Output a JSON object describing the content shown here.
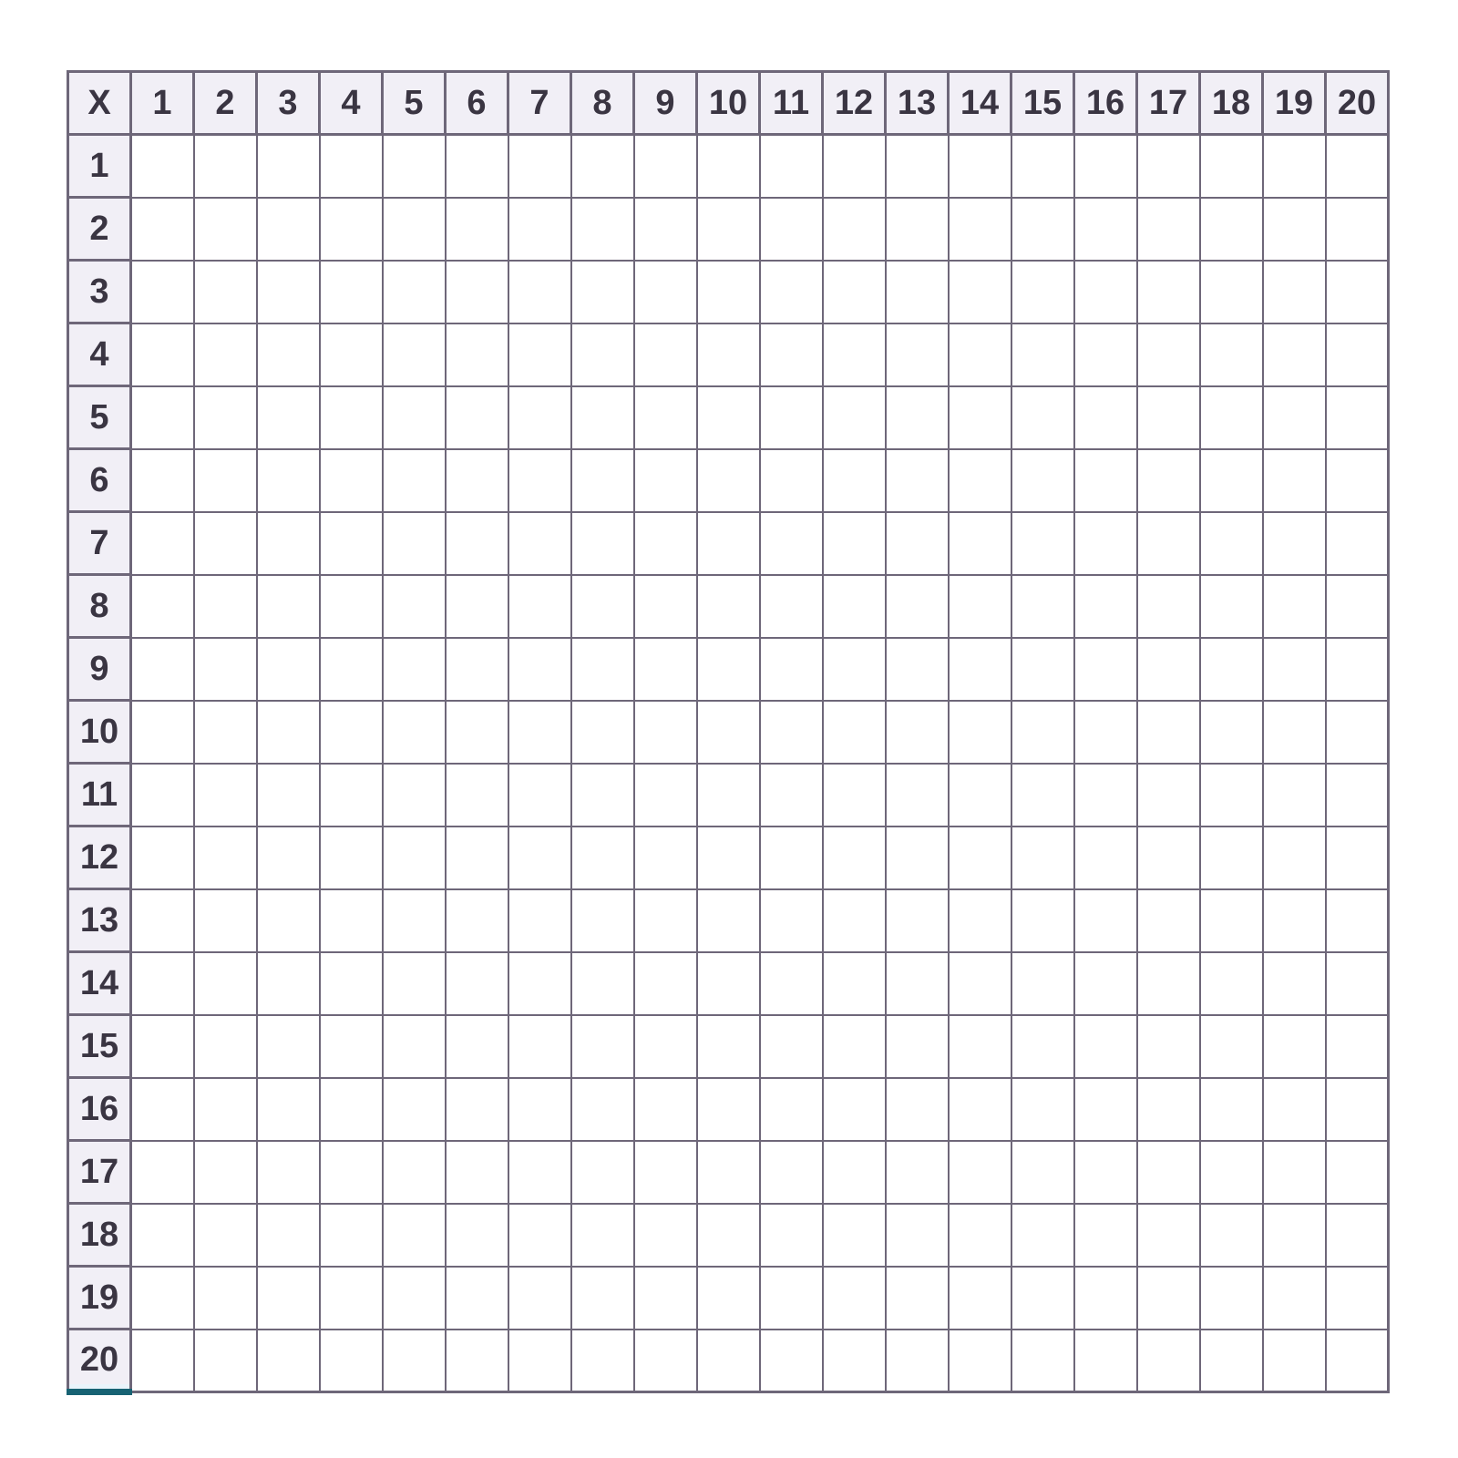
{
  "table": {
    "corner_label": "X",
    "column_headers": [
      "1",
      "2",
      "3",
      "4",
      "5",
      "6",
      "7",
      "8",
      "9",
      "10",
      "11",
      "12",
      "13",
      "14",
      "15",
      "16",
      "17",
      "18",
      "19",
      "20"
    ],
    "row_headers": [
      "1",
      "2",
      "3",
      "4",
      "5",
      "6",
      "7",
      "8",
      "9",
      "10",
      "11",
      "12",
      "13",
      "14",
      "15",
      "16",
      "17",
      "18",
      "19",
      "20"
    ],
    "cell_placeholder": "",
    "rows": 20,
    "cols": 20
  },
  "colors": {
    "grid_border": "#6e6779",
    "header_background": "#f1eff6",
    "header_text": "#3a3542",
    "cell_background": "#ffffff",
    "accent_teal_underline": "#176273",
    "accent_lightblue_strip": "#e9f4fb",
    "page_background": "#ffffff"
  }
}
